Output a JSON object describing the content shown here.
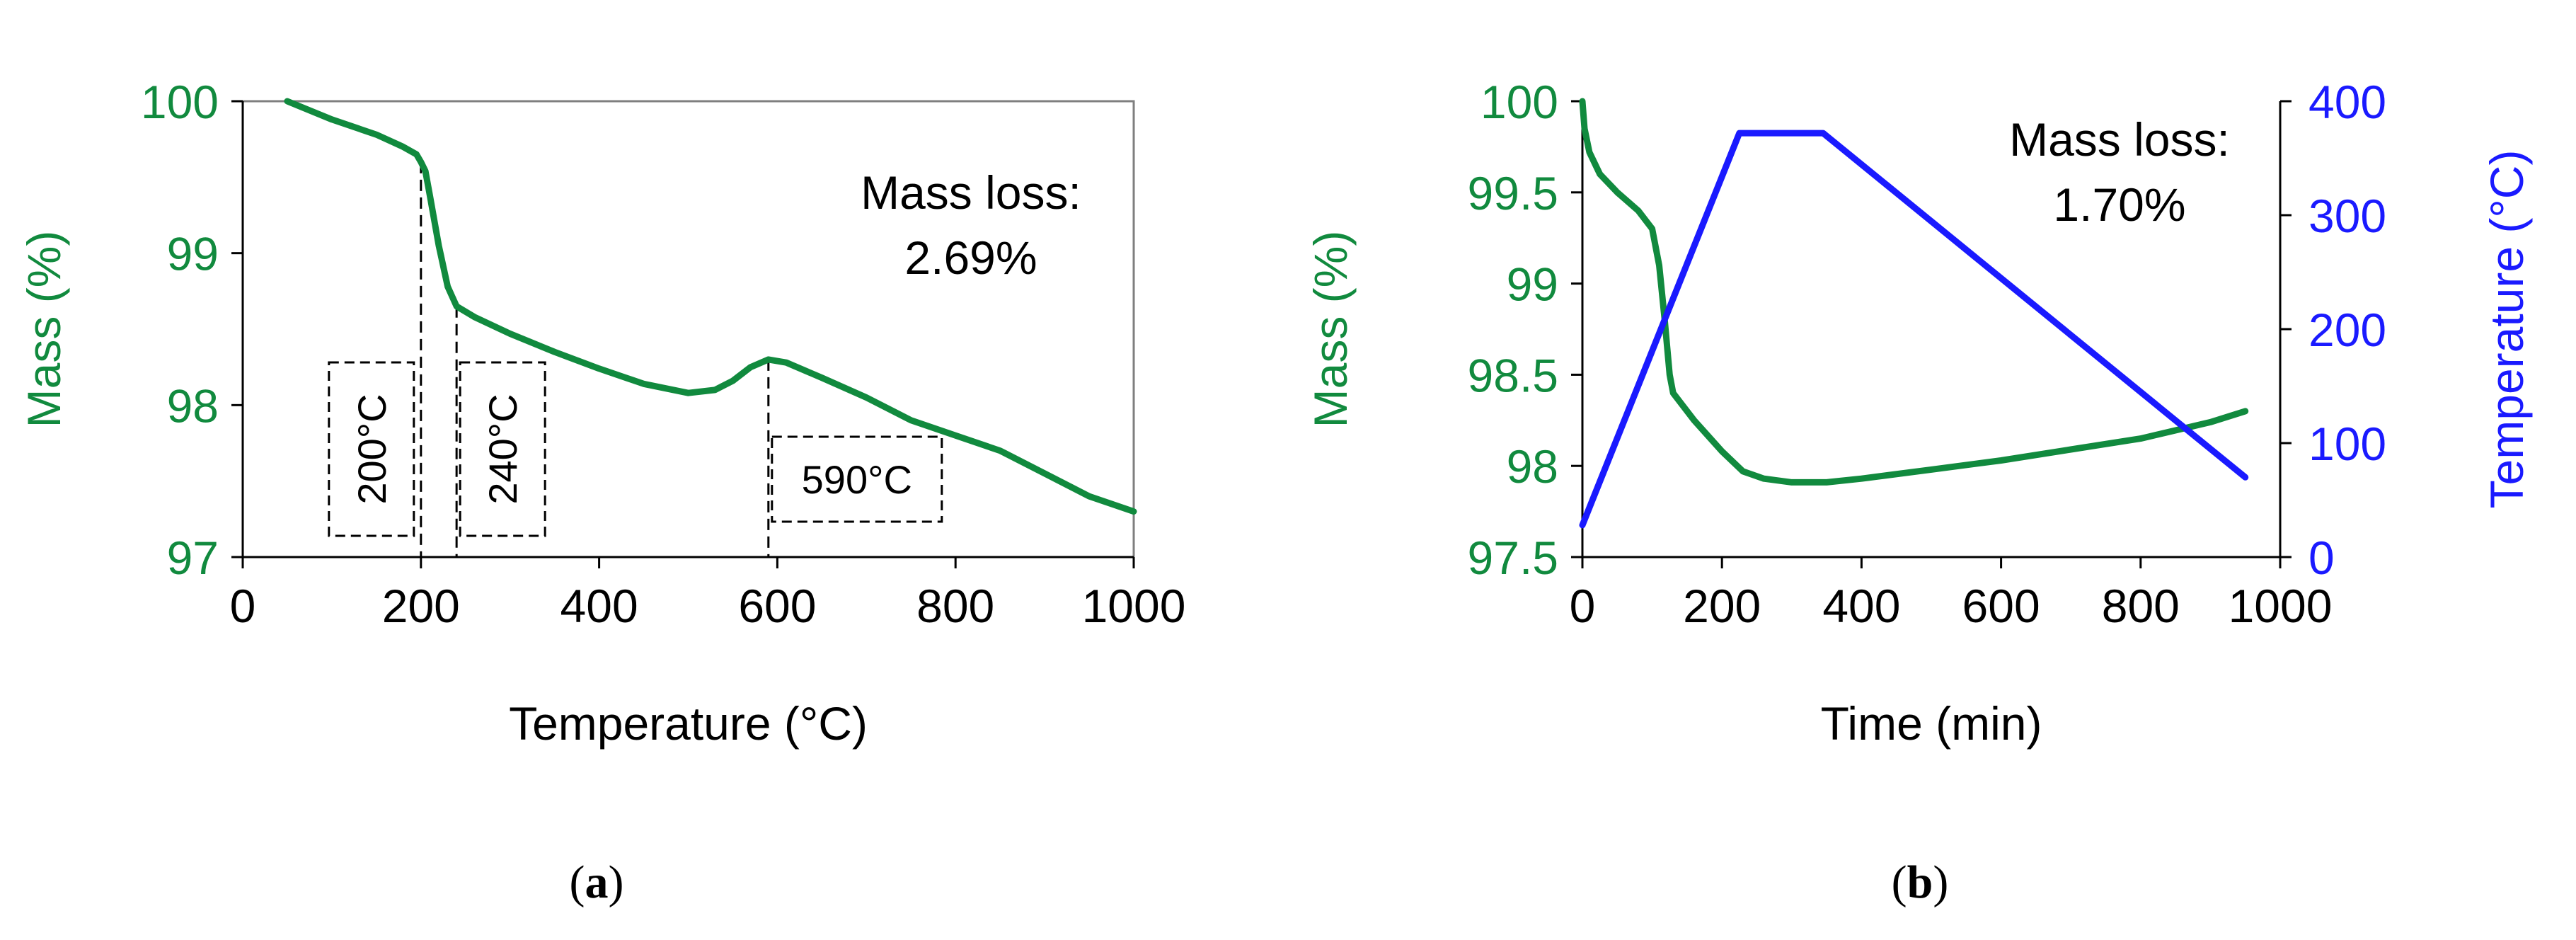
{
  "colors": {
    "mass": "#118a3e",
    "temperature": "#1a1aff",
    "axis": "#000000"
  },
  "chart_data": [
    {
      "panel": "a",
      "type": "line",
      "caption": {
        "open": "(",
        "letter": "a",
        "close": ")"
      },
      "xlabel": "Temperature (°C)",
      "ylabel": "Mass (%)",
      "xlim": [
        0,
        1000
      ],
      "ylim": [
        97,
        100
      ],
      "xticks": [
        0,
        200,
        400,
        600,
        800,
        1000
      ],
      "xtick_labels": [
        "0",
        "200",
        "400",
        "600",
        "800",
        "1000"
      ],
      "yticks": [
        97,
        98,
        99,
        100
      ],
      "ytick_labels": [
        "97",
        "98",
        "99",
        "100"
      ],
      "annotation": {
        "line1": "Mass loss:",
        "line2": "2.69%"
      },
      "markers": [
        {
          "label": "200°C",
          "x": 200,
          "y": 99.6
        },
        {
          "label": "240°C",
          "x": 240,
          "y": 98.65
        },
        {
          "label": "590°C",
          "x": 590,
          "y": 98.3
        }
      ],
      "series": [
        {
          "name": "Mass",
          "x": [
            50,
            100,
            150,
            180,
            195,
            200,
            205,
            210,
            220,
            230,
            240,
            260,
            300,
            350,
            400,
            450,
            500,
            530,
            550,
            570,
            590,
            610,
            650,
            700,
            750,
            800,
            850,
            900,
            950,
            1000
          ],
          "y": [
            100.0,
            99.88,
            99.78,
            99.7,
            99.65,
            99.6,
            99.54,
            99.38,
            99.05,
            98.78,
            98.65,
            98.58,
            98.47,
            98.35,
            98.24,
            98.14,
            98.08,
            98.1,
            98.16,
            98.25,
            98.3,
            98.28,
            98.18,
            98.05,
            97.9,
            97.8,
            97.7,
            97.55,
            97.4,
            97.3
          ]
        }
      ]
    },
    {
      "panel": "b",
      "type": "line",
      "caption": {
        "open": "(",
        "letter": "b",
        "close": ")"
      },
      "xlabel": "Time (min)",
      "ylabel": "Mass (%)",
      "y2label": "Temperature (°C)",
      "xlim": [
        0,
        1000
      ],
      "ylim": [
        97.5,
        100
      ],
      "y2lim": [
        0,
        400
      ],
      "xticks": [
        0,
        200,
        400,
        600,
        800,
        1000
      ],
      "xtick_labels": [
        "0",
        "200",
        "400",
        "600",
        "800",
        "1000"
      ],
      "yticks": [
        97.5,
        98,
        98.5,
        99,
        99.5,
        100
      ],
      "ytick_labels": [
        "97.5",
        "98",
        "98.5",
        "99",
        "99.5",
        "100"
      ],
      "y2ticks": [
        0,
        100,
        200,
        300,
        400
      ],
      "y2tick_labels": [
        "0",
        "100",
        "200",
        "300",
        "400"
      ],
      "annotation": {
        "line1": "Mass loss:",
        "line2": "1.70%"
      },
      "series": [
        {
          "name": "Mass",
          "axis": "left",
          "x": [
            0,
            3,
            10,
            25,
            50,
            80,
            100,
            110,
            118,
            125,
            130,
            160,
            200,
            230,
            260,
            300,
            350,
            400,
            500,
            600,
            700,
            800,
            900,
            950
          ],
          "y": [
            100.0,
            99.85,
            99.72,
            99.6,
            99.5,
            99.4,
            99.3,
            99.1,
            98.8,
            98.5,
            98.4,
            98.25,
            98.08,
            97.97,
            97.93,
            97.91,
            97.91,
            97.93,
            97.98,
            98.03,
            98.09,
            98.15,
            98.24,
            98.3
          ]
        },
        {
          "name": "Temperature",
          "axis": "right",
          "x": [
            0,
            225,
            345,
            950
          ],
          "y": [
            28,
            372,
            372,
            70
          ]
        }
      ]
    }
  ]
}
